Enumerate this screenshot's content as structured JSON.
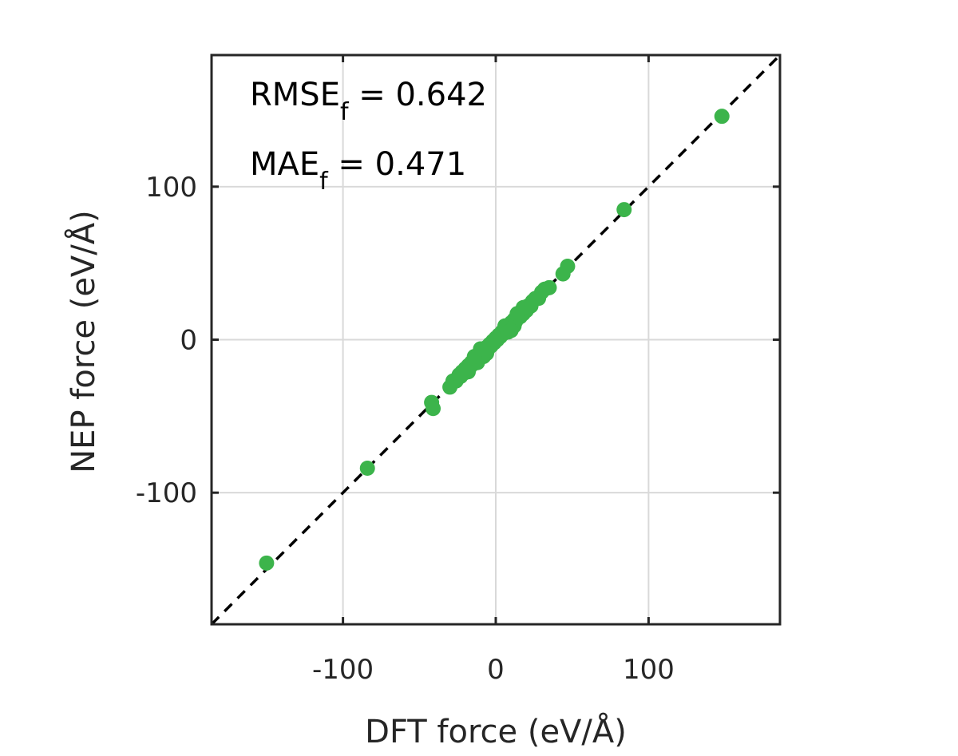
{
  "chart_data": {
    "type": "scatter",
    "xlabel": "DFT force (eV/Å)",
    "ylabel": "NEP force (eV/Å)",
    "xlim": [
      -186,
      186
    ],
    "ylim": [
      -186,
      186
    ],
    "xticks": [
      -100,
      0,
      100
    ],
    "yticks": [
      -100,
      0,
      100
    ],
    "xtick_labels": [
      "-100",
      "0",
      "100"
    ],
    "ytick_labels": [
      "-100",
      "0",
      "100"
    ],
    "grid": true,
    "reference_line": "y = x (dashed)",
    "colors": {
      "points": "#3cb44b",
      "reference": "#000000",
      "grid": "#d9d9d9",
      "axes": "#262626"
    },
    "annotations": [
      {
        "name": "RMSE",
        "sub": "f",
        "text": " = 0.642"
      },
      {
        "name": "MAE",
        "sub": "f",
        "text": " = 0.471"
      }
    ],
    "points": [
      [
        148,
        146
      ],
      [
        84,
        85
      ],
      [
        47,
        48
      ],
      [
        44,
        43
      ],
      [
        35,
        34
      ],
      [
        32,
        33
      ],
      [
        30,
        31
      ],
      [
        28,
        27
      ],
      [
        26,
        27
      ],
      [
        24,
        25
      ],
      [
        23,
        22
      ],
      [
        21,
        22
      ],
      [
        20,
        19
      ],
      [
        19,
        20
      ],
      [
        18,
        17
      ],
      [
        17,
        18
      ],
      [
        16,
        15
      ],
      [
        15,
        16
      ],
      [
        14,
        14
      ],
      [
        13,
        12
      ],
      [
        12,
        13
      ],
      [
        11,
        10
      ],
      [
        10,
        11
      ],
      [
        9,
        8
      ],
      [
        8,
        9
      ],
      [
        7,
        6
      ],
      [
        6,
        7
      ],
      [
        5,
        4
      ],
      [
        4,
        5
      ],
      [
        3,
        2
      ],
      [
        2,
        3
      ],
      [
        1,
        0
      ],
      [
        0,
        1
      ],
      [
        -1,
        -2
      ],
      [
        -2,
        -1
      ],
      [
        -3,
        -4
      ],
      [
        -4,
        -3
      ],
      [
        -5,
        -6
      ],
      [
        -6,
        -5
      ],
      [
        -7,
        -8
      ],
      [
        -8,
        -7
      ],
      [
        -9,
        -10
      ],
      [
        -10,
        -9
      ],
      [
        -11,
        -12
      ],
      [
        -12,
        -11
      ],
      [
        -13,
        -14
      ],
      [
        -14,
        -13
      ],
      [
        -15,
        -16
      ],
      [
        -16,
        -15
      ],
      [
        -17,
        -18
      ],
      [
        -18,
        -17
      ],
      [
        -19,
        -20
      ],
      [
        -20,
        -19
      ],
      [
        -21,
        -22
      ],
      [
        -22,
        -21
      ],
      [
        -23,
        -24
      ],
      [
        -24,
        -23
      ],
      [
        -26,
        -27
      ],
      [
        -28,
        -27
      ],
      [
        -30,
        -31
      ],
      [
        -8,
        -11
      ],
      [
        -6,
        -9
      ],
      [
        6,
        9
      ],
      [
        8,
        5
      ],
      [
        12,
        9
      ],
      [
        -12,
        -15
      ],
      [
        18,
        21
      ],
      [
        -18,
        -21
      ],
      [
        14,
        17
      ],
      [
        -14,
        -11
      ],
      [
        10,
        6
      ],
      [
        -10,
        -6
      ],
      [
        -42,
        -41
      ],
      [
        -41,
        -45
      ],
      [
        -84,
        -84
      ],
      [
        -150,
        -146
      ]
    ]
  }
}
